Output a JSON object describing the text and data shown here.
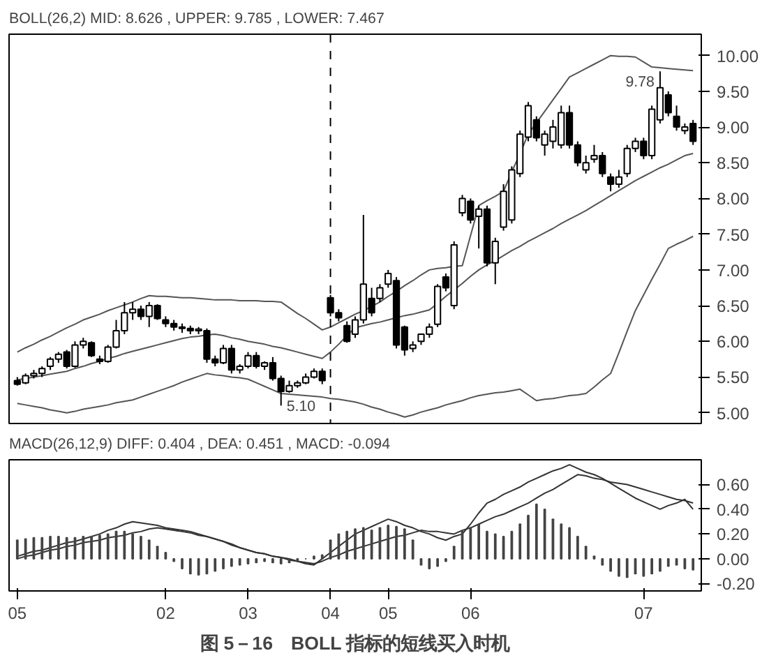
{
  "chart_data": [
    {
      "type": "candlestick",
      "title": "BOLL(26,2) MID: 8.626 , UPPER: 9.785 , LOWER: 7.467",
      "categories": [
        "05",
        null,
        null,
        null,
        null,
        null,
        null,
        null,
        null,
        null,
        null,
        null,
        null,
        null,
        null,
        null,
        null,
        null,
        "02",
        null,
        null,
        null,
        null,
        null,
        null,
        null,
        null,
        null,
        "03",
        null,
        null,
        null,
        null,
        null,
        null,
        null,
        null,
        null,
        "04",
        null,
        null,
        null,
        null,
        null,
        null,
        "05",
        null,
        null,
        null,
        null,
        null,
        null,
        null,
        null,
        null,
        "06",
        null,
        null,
        null,
        null,
        null,
        null,
        null,
        null,
        null,
        null,
        null,
        null,
        null,
        null,
        null,
        null,
        null,
        null,
        null,
        null,
        "07",
        null,
        null,
        null,
        null,
        null,
        null
      ],
      "ohlc": [
        [
          5.45,
          5.5,
          5.38,
          5.4
        ],
        [
          5.42,
          5.55,
          5.4,
          5.52
        ],
        [
          5.52,
          5.6,
          5.48,
          5.55
        ],
        [
          5.55,
          5.65,
          5.5,
          5.62
        ],
        [
          5.65,
          5.78,
          5.6,
          5.75
        ],
        [
          5.75,
          5.85,
          5.7,
          5.82
        ],
        [
          5.85,
          5.88,
          5.62,
          5.65
        ],
        [
          5.65,
          6.0,
          5.63,
          5.95
        ],
        [
          5.95,
          6.05,
          5.9,
          6.0
        ],
        [
          5.98,
          6.0,
          5.78,
          5.8
        ],
        [
          5.75,
          5.8,
          5.68,
          5.72
        ],
        [
          5.72,
          5.95,
          5.7,
          5.92
        ],
        [
          5.92,
          6.3,
          5.9,
          6.15
        ],
        [
          6.15,
          6.55,
          6.1,
          6.4
        ],
        [
          6.4,
          6.55,
          6.3,
          6.45
        ],
        [
          6.45,
          6.5,
          6.3,
          6.35
        ],
        [
          6.35,
          6.55,
          6.2,
          6.5
        ],
        [
          6.5,
          6.52,
          6.3,
          6.32
        ],
        [
          6.3,
          6.35,
          6.2,
          6.25
        ],
        [
          6.25,
          6.3,
          6.15,
          6.2
        ],
        [
          6.2,
          6.25,
          6.12,
          6.18
        ],
        [
          6.18,
          6.22,
          6.1,
          6.15
        ],
        [
          6.15,
          6.2,
          6.1,
          6.17
        ],
        [
          6.15,
          6.18,
          5.7,
          5.75
        ],
        [
          5.75,
          5.8,
          5.65,
          5.7
        ],
        [
          5.7,
          5.95,
          5.68,
          5.9
        ],
        [
          5.9,
          5.95,
          5.55,
          5.6
        ],
        [
          5.6,
          5.68,
          5.55,
          5.65
        ],
        [
          5.65,
          5.85,
          5.62,
          5.8
        ],
        [
          5.8,
          5.85,
          5.62,
          5.65
        ],
        [
          5.65,
          5.72,
          5.6,
          5.7
        ],
        [
          5.7,
          5.78,
          5.45,
          5.48
        ],
        [
          5.48,
          5.52,
          5.1,
          5.3
        ],
        [
          5.3,
          5.45,
          5.28,
          5.38
        ],
        [
          5.38,
          5.45,
          5.35,
          5.42
        ],
        [
          5.42,
          5.55,
          5.4,
          5.5
        ],
        [
          5.5,
          5.62,
          5.48,
          5.58
        ],
        [
          5.58,
          5.62,
          5.4,
          5.45
        ],
        [
          6.61,
          6.65,
          6.35,
          6.4
        ],
        [
          6.4,
          6.45,
          6.28,
          6.33
        ],
        [
          6.22,
          6.28,
          5.98,
          6.0
        ],
        [
          6.1,
          6.35,
          6.05,
          6.3
        ],
        [
          6.3,
          7.77,
          6.25,
          6.8
        ],
        [
          6.6,
          6.75,
          6.35,
          6.4
        ],
        [
          6.6,
          6.8,
          6.55,
          6.75
        ],
        [
          6.8,
          7.0,
          6.75,
          6.95
        ],
        [
          6.85,
          6.9,
          5.9,
          5.95
        ],
        [
          6.2,
          6.22,
          5.8,
          5.88
        ],
        [
          5.9,
          6.0,
          5.85,
          5.95
        ],
        [
          6.0,
          6.1,
          5.95,
          6.1
        ],
        [
          6.1,
          6.25,
          6.05,
          6.2
        ],
        [
          6.24,
          6.8,
          6.2,
          6.77
        ],
        [
          6.9,
          6.95,
          6.7,
          6.75
        ],
        [
          6.5,
          7.4,
          6.45,
          7.35
        ],
        [
          7.8,
          8.05,
          7.75,
          8.0
        ],
        [
          7.96,
          8.0,
          7.65,
          7.7
        ],
        [
          7.75,
          7.9,
          7.3,
          7.85
        ],
        [
          7.85,
          7.9,
          7.05,
          7.1
        ],
        [
          7.1,
          7.45,
          6.8,
          7.4
        ],
        [
          7.6,
          8.2,
          7.55,
          8.1
        ],
        [
          7.7,
          8.45,
          7.65,
          8.4
        ],
        [
          8.35,
          8.95,
          8.3,
          8.9
        ],
        [
          8.86,
          9.35,
          8.8,
          9.3
        ],
        [
          9.1,
          9.15,
          8.8,
          8.85
        ],
        [
          8.75,
          8.95,
          8.6,
          8.9
        ],
        [
          8.8,
          9.1,
          8.7,
          9.0
        ],
        [
          8.75,
          9.3,
          8.7,
          9.2
        ],
        [
          9.2,
          9.3,
          8.7,
          8.75
        ],
        [
          8.75,
          8.8,
          8.45,
          8.5
        ],
        [
          8.4,
          8.6,
          8.35,
          8.5
        ],
        [
          8.55,
          8.75,
          8.5,
          8.6
        ],
        [
          8.6,
          8.65,
          8.3,
          8.35
        ],
        [
          8.3,
          8.35,
          8.1,
          8.2
        ],
        [
          8.2,
          8.4,
          8.15,
          8.3
        ],
        [
          8.35,
          8.75,
          8.3,
          8.7
        ],
        [
          8.7,
          8.85,
          8.65,
          8.8
        ],
        [
          8.8,
          8.85,
          8.55,
          8.6
        ],
        [
          8.6,
          9.3,
          8.55,
          9.25
        ],
        [
          9.1,
          9.78,
          9.05,
          9.55
        ],
        [
          9.45,
          9.5,
          9.15,
          9.2
        ],
        [
          9.15,
          9.3,
          8.95,
          9.0
        ],
        [
          8.95,
          9.05,
          8.9,
          9.0
        ],
        [
          9.05,
          9.1,
          8.75,
          8.8
        ]
      ],
      "series": [
        {
          "type": "line",
          "color": "#555555",
          "values": [
            5.85,
            5.91,
            5.96,
            6.02,
            6.07,
            6.13,
            6.19,
            6.24,
            6.3,
            6.34,
            6.38,
            6.43,
            6.47,
            6.51,
            6.55,
            6.6,
            6.64,
            6.63,
            6.63,
            6.62,
            6.61,
            6.61,
            6.6,
            6.59,
            6.58,
            6.58,
            6.58,
            6.57,
            6.57,
            6.57,
            6.56,
            6.56,
            6.55,
            6.47,
            6.39,
            6.32,
            6.24,
            6.16,
            6.2,
            6.26,
            6.32,
            6.38,
            6.43,
            6.49,
            6.55,
            6.63,
            6.7,
            6.78,
            6.85,
            6.93,
            7.0,
            7.02,
            7.03,
            7.05,
            7.06,
            7.48,
            7.9,
            7.97,
            8.03,
            8.1,
            8.37,
            8.63,
            8.9,
            9.06,
            9.22,
            9.38,
            9.54,
            9.7,
            9.76,
            9.82,
            9.88,
            9.94,
            10.0,
            9.99,
            9.99,
            9.98,
            9.91,
            9.84,
            9.83,
            9.82,
            9.81,
            9.8,
            9.79
          ]
        },
        {
          "type": "line",
          "color": "#555555",
          "values": [
            5.46,
            5.48,
            5.5,
            5.52,
            5.54,
            5.56,
            5.58,
            5.62,
            5.65,
            5.69,
            5.72,
            5.76,
            5.79,
            5.83,
            5.86,
            5.89,
            5.92,
            5.95,
            5.98,
            6.01,
            6.04,
            6.06,
            6.07,
            6.09,
            6.1,
            6.08,
            6.05,
            6.03,
            6.0,
            5.98,
            5.96,
            5.93,
            5.91,
            5.88,
            5.85,
            5.82,
            5.79,
            5.76,
            5.85,
            5.96,
            6.08,
            6.19,
            6.22,
            6.25,
            6.27,
            6.3,
            6.33,
            6.36,
            6.38,
            6.41,
            6.44,
            6.53,
            6.63,
            6.72,
            6.81,
            6.91,
            7.0,
            7.07,
            7.13,
            7.2,
            7.27,
            7.33,
            7.4,
            7.46,
            7.52,
            7.58,
            7.65,
            7.71,
            7.77,
            7.83,
            7.9,
            7.97,
            8.04,
            8.11,
            8.18,
            8.25,
            8.31,
            8.37,
            8.43,
            8.48,
            8.54,
            8.6,
            8.63
          ]
        },
        {
          "type": "line",
          "color": "#555555",
          "values": [
            5.13,
            5.11,
            5.09,
            5.07,
            5.04,
            5.02,
            5.0,
            5.02,
            5.05,
            5.07,
            5.09,
            5.11,
            5.14,
            5.16,
            5.18,
            5.22,
            5.26,
            5.3,
            5.34,
            5.38,
            5.43,
            5.47,
            5.51,
            5.55,
            5.53,
            5.52,
            5.5,
            5.49,
            5.47,
            5.42,
            5.37,
            5.32,
            5.27,
            5.26,
            5.25,
            5.24,
            5.23,
            5.22,
            5.2,
            5.19,
            5.17,
            5.15,
            5.12,
            5.08,
            5.05,
            5.01,
            4.98,
            4.94,
            4.97,
            5.01,
            5.04,
            5.07,
            5.11,
            5.14,
            5.17,
            5.21,
            5.24,
            5.26,
            5.28,
            5.29,
            5.31,
            5.33,
            5.25,
            5.17,
            5.19,
            5.2,
            5.22,
            5.24,
            5.25,
            5.27,
            5.36,
            5.46,
            5.55,
            5.84,
            6.14,
            6.43,
            6.65,
            6.87,
            7.08,
            7.3,
            7.36,
            7.41,
            7.47
          ]
        }
      ],
      "ylim": [
        4.85,
        10.3
      ],
      "yticks": [
        {
          "value": 5,
          "label": "5.00"
        },
        {
          "value": 5.5,
          "label": "5.50"
        },
        {
          "value": 6,
          "label": "6.00"
        },
        {
          "value": 6.5,
          "label": "6.50"
        },
        {
          "value": 7,
          "label": "7.00"
        },
        {
          "value": 7.5,
          "label": "7.50"
        },
        {
          "value": 8,
          "label": "8.00"
        },
        {
          "value": 8.5,
          "label": "8.50"
        },
        {
          "value": 9,
          "label": "9.00"
        },
        {
          "value": 9.5,
          "label": "9.50"
        },
        {
          "value": 10,
          "label": "10.00"
        }
      ],
      "tick_labels": "y",
      "ref_lines": [
        {
          "axis": "x",
          "value": "04",
          "line_style": "dashed",
          "color": "#000000"
        }
      ],
      "annotations": [
        "5.10",
        "9.78"
      ]
    },
    {
      "type": "bar",
      "title": "MACD(26,12,9) DIFF: 0.404 , DEA: 0.451 , MACD: -0.094",
      "categories": [
        "05",
        null,
        null,
        null,
        null,
        null,
        null,
        null,
        null,
        null,
        null,
        null,
        null,
        null,
        null,
        null,
        null,
        null,
        "02",
        null,
        null,
        null,
        null,
        null,
        null,
        null,
        null,
        null,
        "03",
        null,
        null,
        null,
        null,
        null,
        null,
        null,
        null,
        null,
        "04",
        null,
        null,
        null,
        null,
        null,
        null,
        "05",
        null,
        null,
        null,
        null,
        null,
        null,
        null,
        null,
        null,
        "06",
        null,
        null,
        null,
        null,
        null,
        null,
        null,
        null,
        null,
        null,
        null,
        null,
        null,
        null,
        null,
        null,
        null,
        null,
        null,
        null,
        "07",
        null,
        null,
        null,
        null,
        null,
        null
      ],
      "series": [
        {
          "type": "bar",
          "color": "#444444",
          "values": [
            0.15,
            0.16,
            0.17,
            0.17,
            0.18,
            0.18,
            0.17,
            0.17,
            0.18,
            0.18,
            0.19,
            0.2,
            0.22,
            0.22,
            0.2,
            0.18,
            0.15,
            0.1,
            0.05,
            -0.02,
            -0.08,
            -0.12,
            -0.13,
            -0.12,
            -0.1,
            -0.08,
            -0.06,
            -0.05,
            -0.04,
            -0.03,
            -0.02,
            -0.03,
            -0.04,
            -0.03,
            -0.02,
            0.0,
            0.02,
            0.03,
            0.15,
            0.2,
            0.22,
            0.24,
            0.25,
            0.23,
            0.25,
            0.27,
            0.26,
            0.24,
            0.15,
            -0.05,
            -0.08,
            -0.06,
            -0.02,
            0.1,
            0.22,
            0.25,
            0.28,
            0.22,
            0.2,
            0.18,
            0.22,
            0.28,
            0.35,
            0.44,
            0.4,
            0.32,
            0.28,
            0.25,
            0.18,
            0.1,
            0.02,
            -0.05,
            -0.1,
            -0.14,
            -0.15,
            -0.12,
            -0.14,
            -0.12,
            -0.1,
            -0.06,
            -0.05,
            -0.08,
            -0.09
          ]
        },
        {
          "type": "line",
          "color": "#333333",
          "values": [
            0.02,
            0.04,
            0.06,
            0.07,
            0.09,
            0.11,
            0.13,
            0.14,
            0.16,
            0.18,
            0.2,
            0.23,
            0.25,
            0.28,
            0.3,
            0.29,
            0.28,
            0.27,
            0.25,
            0.24,
            0.23,
            0.22,
            0.2,
            0.18,
            0.16,
            0.14,
            0.11,
            0.09,
            0.07,
            0.05,
            0.04,
            0.02,
            0.01,
            -0.01,
            -0.02,
            -0.04,
            -0.05,
            0.0,
            0.05,
            0.1,
            0.15,
            0.2,
            0.23,
            0.26,
            0.29,
            0.32,
            0.3,
            0.27,
            0.25,
            0.22,
            0.2,
            0.17,
            0.15,
            0.18,
            0.2,
            0.28,
            0.37,
            0.45,
            0.48,
            0.52,
            0.55,
            0.58,
            0.62,
            0.65,
            0.68,
            0.71,
            0.73,
            0.76,
            0.73,
            0.7,
            0.68,
            0.65,
            0.61,
            0.57,
            0.53,
            0.49,
            0.46,
            0.43,
            0.4,
            0.43,
            0.45,
            0.48,
            0.4
          ]
        },
        {
          "type": "line",
          "color": "#333333",
          "values": [
            0.0,
            0.02,
            0.03,
            0.05,
            0.07,
            0.08,
            0.1,
            0.11,
            0.13,
            0.14,
            0.15,
            0.17,
            0.18,
            0.19,
            0.21,
            0.22,
            0.24,
            0.25,
            0.24,
            0.23,
            0.22,
            0.21,
            0.19,
            0.18,
            0.16,
            0.14,
            0.12,
            0.09,
            0.07,
            0.05,
            0.04,
            0.02,
            0.01,
            0.0,
            -0.02,
            -0.03,
            -0.04,
            -0.02,
            0.01,
            0.03,
            0.06,
            0.08,
            0.1,
            0.12,
            0.14,
            0.16,
            0.18,
            0.19,
            0.21,
            0.23,
            0.22,
            0.22,
            0.21,
            0.2,
            0.23,
            0.25,
            0.28,
            0.31,
            0.34,
            0.36,
            0.39,
            0.42,
            0.45,
            0.49,
            0.53,
            0.56,
            0.6,
            0.64,
            0.68,
            0.67,
            0.65,
            0.64,
            0.62,
            0.61,
            0.6,
            0.58,
            0.56,
            0.54,
            0.52,
            0.5,
            0.48,
            0.47,
            0.45
          ]
        }
      ],
      "ylim": [
        -0.26,
        0.8
      ],
      "yticks": [
        {
          "value": -0.2,
          "label": "-0.20"
        },
        {
          "value": 0,
          "label": "0.00"
        },
        {
          "value": 0.2,
          "label": "0.20"
        },
        {
          "value": 0.4,
          "label": "0.40"
        },
        {
          "value": 0.6,
          "label": "0.60"
        }
      ],
      "annotations": [
        "图 5－16　BOLL 指标的短线买入时机"
      ]
    }
  ]
}
